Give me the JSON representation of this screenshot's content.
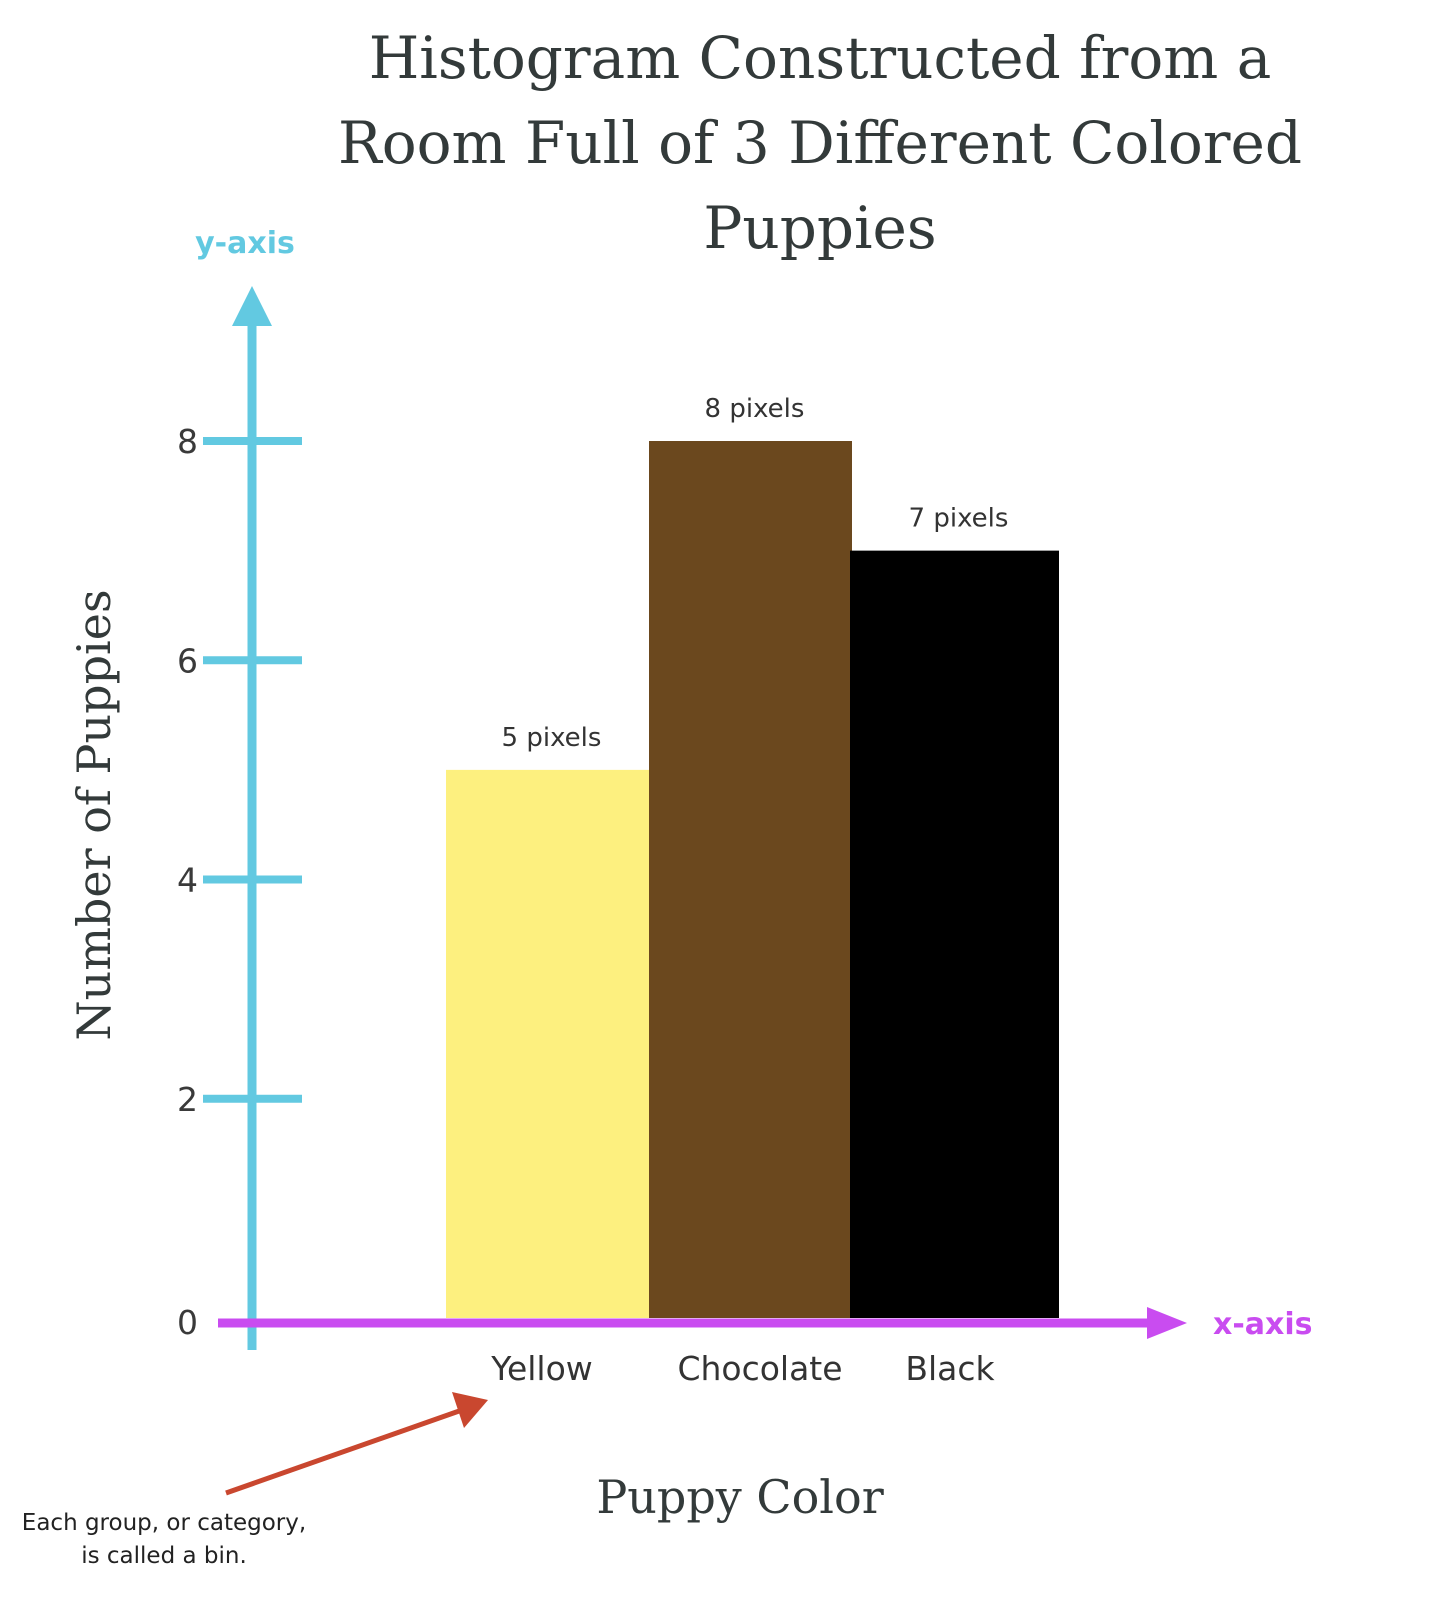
{
  "chart_data": {
    "type": "bar",
    "title_lines": [
      "Histogram Constructed from a",
      "Room Full of 3 Different Colored",
      "Puppies"
    ],
    "xlabel": "Puppy Color",
    "ylabel": "Number of Puppies",
    "categories": [
      "Yellow",
      "Chocolate",
      "Black"
    ],
    "values": [
      5,
      8,
      7
    ],
    "bar_labels": [
      "5 pixels",
      "8 pixels",
      "7 pixels"
    ],
    "bar_colors": [
      "#fdf07f",
      "#6b481e",
      "#000000"
    ],
    "yticks": [
      0,
      2,
      4,
      6,
      8
    ],
    "ylim": [
      0,
      8
    ],
    "grid": false,
    "legend": "none",
    "y_axis_tag": "y-axis",
    "x_axis_tag": "x-axis",
    "y_axis_color": "#62c9e1",
    "x_axis_color": "#c94cf0",
    "annotation": {
      "lines": [
        "Each group, or category,",
        "is called a bin."
      ],
      "arrow_color": "#c9472f",
      "points_to": "Yellow"
    }
  }
}
